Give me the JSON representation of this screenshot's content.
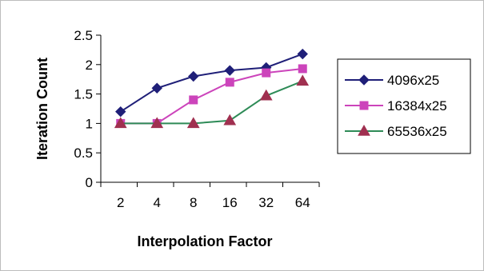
{
  "chart_data": {
    "type": "line",
    "title": "",
    "xlabel": "Interpolation Factor",
    "ylabel": "Iteration Count",
    "categories": [
      "2",
      "4",
      "8",
      "16",
      "32",
      "64"
    ],
    "ylim": [
      0,
      2.5
    ],
    "yticks": [
      "0",
      "0.5",
      "1",
      "1.5",
      "2",
      "2.5"
    ],
    "grid": false,
    "legend_position": "right",
    "series": [
      {
        "name": "4096x25",
        "color": "#1f1f78",
        "marker": "diamond",
        "values": [
          1.2,
          1.6,
          1.8,
          1.9,
          1.95,
          2.18
        ]
      },
      {
        "name": "16384x25",
        "color": "#cc44bb",
        "marker": "square",
        "values": [
          1.0,
          1.0,
          1.4,
          1.7,
          1.86,
          1.93
        ]
      },
      {
        "name": "65536x25",
        "color": "#2e8b57",
        "marker_color": "#a03050",
        "marker": "triangle",
        "values": [
          1.0,
          1.0,
          1.0,
          1.05,
          1.47,
          1.72
        ]
      }
    ]
  }
}
